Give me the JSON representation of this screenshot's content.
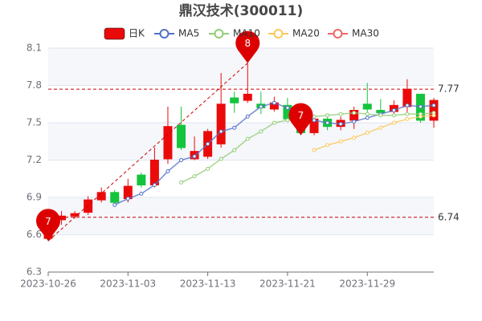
{
  "chart_data": {
    "type": "candlestick",
    "title": "鼎汉技术(300011)",
    "categories": [
      "2023-10-26",
      null,
      null,
      null,
      null,
      null,
      "2023-11-03",
      null,
      null,
      null,
      null,
      null,
      "2023-11-13",
      null,
      null,
      null,
      null,
      null,
      "2023-11-21",
      null,
      null,
      null,
      null,
      null,
      "2023-11-29",
      null,
      null,
      null,
      null,
      null
    ],
    "series": [
      {
        "name": "日K",
        "up_color": "#eb0a0a",
        "down_color": "#14c43c",
        "open": [
          6.57,
          6.72,
          6.75,
          6.78,
          6.88,
          6.94,
          6.89,
          7.08,
          7.0,
          7.21,
          7.48,
          7.21,
          7.23,
          7.33,
          7.7,
          7.68,
          7.65,
          7.61,
          7.64,
          7.57,
          7.42,
          7.53,
          7.47,
          7.52,
          7.65,
          7.6,
          7.59,
          7.63,
          7.73,
          7.52
        ],
        "close": [
          6.73,
          6.75,
          6.77,
          6.88,
          6.94,
          6.86,
          6.99,
          7.0,
          7.2,
          7.47,
          7.3,
          7.27,
          7.43,
          7.65,
          7.66,
          7.73,
          7.62,
          7.66,
          7.53,
          7.42,
          7.53,
          7.47,
          7.52,
          7.6,
          7.61,
          7.58,
          7.64,
          7.77,
          7.52,
          7.68
        ],
        "high": [
          6.76,
          6.79,
          6.79,
          6.91,
          6.98,
          6.96,
          7.05,
          7.1,
          7.3,
          7.63,
          7.63,
          7.39,
          7.45,
          7.9,
          7.75,
          7.98,
          7.75,
          7.71,
          7.7,
          7.63,
          7.56,
          7.56,
          7.55,
          7.63,
          7.82,
          7.69,
          7.68,
          7.85,
          7.73,
          7.7
        ],
        "low": [
          6.55,
          6.68,
          6.73,
          6.76,
          6.86,
          6.84,
          6.86,
          6.98,
          6.98,
          7.17,
          7.28,
          7.2,
          7.21,
          7.3,
          7.58,
          7.66,
          7.57,
          7.59,
          7.51,
          7.4,
          7.4,
          7.44,
          7.44,
          7.45,
          7.58,
          7.55,
          7.55,
          7.58,
          7.5,
          7.46
        ]
      },
      {
        "name": "MA5",
        "color": "#5470c6",
        "values": [
          null,
          null,
          null,
          null,
          null,
          6.84,
          6.89,
          6.93,
          7.0,
          7.11,
          7.2,
          7.23,
          7.33,
          7.43,
          7.46,
          7.55,
          7.63,
          7.66,
          7.62,
          7.55,
          7.52,
          7.5,
          7.49,
          7.51,
          7.54,
          7.57,
          7.6,
          7.64,
          7.63,
          7.64
        ]
      },
      {
        "name": "MA10",
        "color": "#91cc75",
        "values": [
          null,
          null,
          null,
          null,
          null,
          null,
          null,
          null,
          null,
          null,
          7.02,
          7.07,
          7.13,
          7.21,
          7.28,
          7.37,
          7.43,
          7.5,
          7.52,
          7.54,
          7.55,
          7.56,
          7.57,
          7.58,
          7.57,
          7.56,
          7.56,
          7.57,
          7.57,
          7.58
        ]
      },
      {
        "name": "MA20",
        "color": "#fac858",
        "values": [
          null,
          null,
          null,
          null,
          null,
          null,
          null,
          null,
          null,
          null,
          null,
          null,
          null,
          null,
          null,
          null,
          null,
          null,
          null,
          null,
          7.28,
          7.32,
          7.35,
          7.38,
          7.42,
          7.46,
          7.5,
          7.53,
          7.55,
          7.56
        ]
      },
      {
        "name": "MA30",
        "color": "#ee6666",
        "values": [
          null,
          null,
          null,
          null,
          null,
          null,
          null,
          null,
          null,
          null,
          null,
          null,
          null,
          null,
          null,
          null,
          null,
          null,
          null,
          null,
          null,
          null,
          null,
          null,
          null,
          null,
          null,
          null,
          null,
          null
        ]
      }
    ],
    "mark_lines": [
      7.77,
      6.74
    ],
    "mark_points": [
      {
        "label": "7",
        "index": 0,
        "value": 6.55
      },
      {
        "label": "8",
        "index": 15,
        "value": 7.98
      },
      {
        "label": "7",
        "index": 19,
        "value": 7.4
      }
    ],
    "ylim": [
      6.3,
      8.1
    ],
    "yticks": [
      6.3,
      6.6,
      6.9,
      7.2,
      7.5,
      7.8,
      8.1
    ],
    "grid": true
  }
}
